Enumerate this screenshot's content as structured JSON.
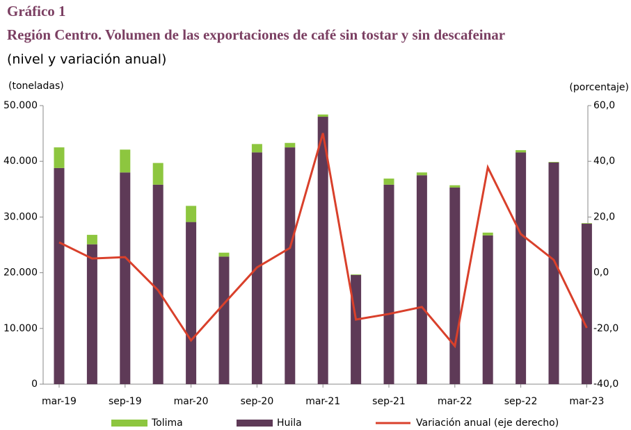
{
  "chart_data": {
    "type": "bar",
    "title": "Gráfico 1",
    "subtitle": "Región Centro. Volumen de las exportaciones de café sin tostar y sin descafeinar",
    "note": "(nivel y variación anual)",
    "y_label": "(toneladas)",
    "y2_label": "(porcentaje)",
    "categories": [
      "mar-19",
      null,
      "sep-19",
      null,
      "mar-20",
      null,
      "sep-20",
      null,
      "mar-21",
      null,
      "sep-21",
      null,
      "mar-22",
      null,
      "sep-22",
      null,
      "mar-23"
    ],
    "series": [
      {
        "name": "Tolima",
        "type": "bar",
        "color": "#8dc63f",
        "values": [
          3700,
          1700,
          4100,
          3900,
          2900,
          700,
          1500,
          800,
          400,
          100,
          1100,
          500,
          400,
          500,
          400,
          100,
          100
        ]
      },
      {
        "name": "Huila",
        "type": "bar",
        "color": "#5e3a57",
        "values": [
          38800,
          25100,
          38000,
          35800,
          29100,
          22900,
          41600,
          42500,
          48000,
          19600,
          35800,
          37500,
          35300,
          26700,
          41600,
          39800,
          28800
        ]
      },
      {
        "name": "Variación anual (eje derecho)",
        "type": "line",
        "axis": "y2",
        "color": "#d9402b",
        "values": [
          10.9,
          5.1,
          5.6,
          -6.3,
          -24.3,
          -11.1,
          1.9,
          8.9,
          50.1,
          -16.8,
          -14.8,
          -12.3,
          -26.3,
          37.8,
          13.9,
          4.6,
          -19.8
        ]
      }
    ],
    "ylim": [
      0,
      50000
    ],
    "yticks": [
      0,
      {
        "value": 10000,
        "label": "10.000"
      },
      {
        "value": 20000,
        "label": "20.000"
      },
      {
        "value": 30000,
        "label": "30.000"
      },
      {
        "value": 40000,
        "label": "40.000"
      },
      {
        "value": 50000,
        "label": "50.000"
      }
    ],
    "y2lim": [
      -40,
      60
    ],
    "y2ticks": [
      {
        "value": -40,
        "label": "-40,0"
      },
      {
        "value": -20,
        "label": "-20,0"
      },
      {
        "value": 0,
        "label": "0,0"
      },
      {
        "value": 20,
        "label": "20,0"
      },
      {
        "value": 40,
        "label": "40,0"
      },
      {
        "value": 60,
        "label": "60,0"
      }
    ],
    "stacked": true,
    "grid": false,
    "legend": "bottom"
  }
}
